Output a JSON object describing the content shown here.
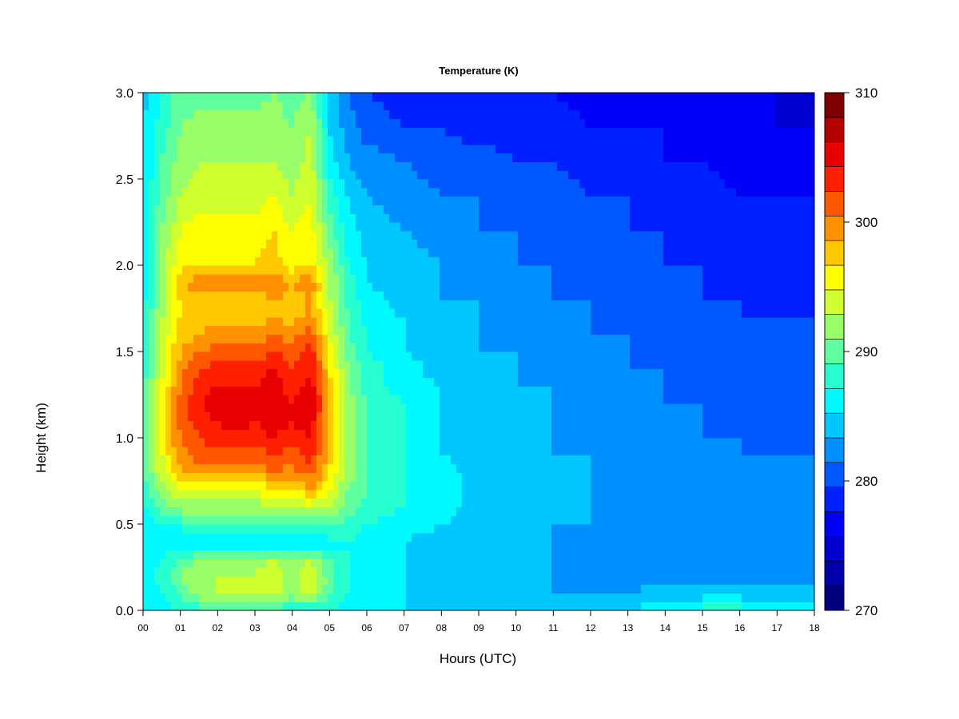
{
  "chart_data": {
    "type": "heatmap",
    "title": "Temperature (K)",
    "xlabel": "Hours (UTC)",
    "ylabel": "Height (km)",
    "x_range": [
      0,
      18
    ],
    "y_range": [
      0,
      3.0
    ],
    "x_ticks": [
      "00",
      "01",
      "02",
      "03",
      "04",
      "05",
      "06",
      "07",
      "08",
      "09",
      "10",
      "11",
      "12",
      "13",
      "14",
      "15",
      "16",
      "17",
      "18"
    ],
    "y_ticks": [
      "0.0",
      "0.5",
      "1.0",
      "1.5",
      "2.0",
      "2.5",
      "3.0"
    ],
    "colorbar": {
      "min": 270,
      "max": 310,
      "step": 2,
      "labels": [
        "270",
        "280",
        "290",
        "300",
        "310"
      ],
      "colors": [
        "#00007f",
        "#0000a8",
        "#0000d0",
        "#0000f8",
        "#0020ff",
        "#0058ff",
        "#0090ff",
        "#00c8ff",
        "#00f8ff",
        "#28ffd0",
        "#60ffa0",
        "#98ff68",
        "#d0ff30",
        "#ffff00",
        "#ffc800",
        "#ff9000",
        "#ff5800",
        "#ff2000",
        "#e80000",
        "#b40000",
        "#7f0000"
      ]
    },
    "temperature_field": {
      "x_hours": [
        0,
        0.5,
        1,
        1.5,
        2,
        2.5,
        3,
        3.5,
        4,
        4.5,
        5,
        5.5,
        6,
        7,
        8,
        9,
        10,
        11,
        12,
        13,
        14,
        15,
        16,
        17,
        18
      ],
      "y_km": [
        0.0,
        0.1,
        0.2,
        0.3,
        0.4,
        0.5,
        0.6,
        0.7,
        0.8,
        0.9,
        1.0,
        1.1,
        1.2,
        1.3,
        1.4,
        1.5,
        1.6,
        1.7,
        1.8,
        1.9,
        2.0,
        2.2,
        2.4,
        2.6,
        2.8,
        3.0
      ],
      "values_K": [
        [
          287,
          287,
          288,
          289,
          289,
          289,
          289,
          289,
          288,
          288,
          288,
          287,
          286,
          286,
          285,
          285,
          285,
          285,
          285,
          286,
          288,
          289,
          289,
          288,
          288
        ],
        [
          287,
          288,
          290,
          293,
          294,
          294,
          294,
          295,
          293,
          295,
          290,
          288,
          287,
          286,
          285,
          285,
          284,
          284,
          284,
          284,
          285,
          285,
          285,
          285,
          285
        ],
        [
          287,
          289,
          292,
          294,
          294,
          294,
          294,
          296,
          293,
          296,
          291,
          288,
          287,
          286,
          285,
          285,
          284,
          284,
          283,
          283,
          283,
          283,
          283,
          283,
          283
        ],
        [
          287,
          288,
          290,
          292,
          293,
          293,
          293,
          294,
          292,
          294,
          290,
          288,
          287,
          286,
          285,
          285,
          284,
          284,
          283,
          283,
          283,
          283,
          283,
          282,
          283
        ],
        [
          286,
          287,
          285,
          286,
          286,
          286,
          285,
          286,
          285,
          286,
          287,
          288,
          287,
          286,
          285,
          285,
          284,
          284,
          283,
          283,
          283,
          283,
          283,
          282,
          283
        ],
        [
          286,
          288,
          289,
          289,
          289,
          289,
          289,
          289,
          290,
          290,
          291,
          289,
          288,
          287,
          286,
          285,
          285,
          284,
          284,
          283,
          283,
          283,
          283,
          283,
          283
        ],
        [
          287,
          291,
          293,
          293,
          293,
          293,
          293,
          294,
          294,
          295,
          294,
          291,
          289,
          288,
          287,
          285,
          285,
          284,
          284,
          283,
          283,
          283,
          283,
          283,
          283
        ],
        [
          289,
          293,
          296,
          297,
          296,
          296,
          296,
          298,
          298,
          300,
          296,
          292,
          290,
          288,
          287,
          285,
          285,
          284,
          284,
          283,
          283,
          283,
          282,
          283,
          283
        ],
        [
          290,
          295,
          299,
          301,
          300,
          300,
          300,
          302,
          301,
          303,
          298,
          293,
          290,
          288,
          287,
          285,
          285,
          284,
          284,
          283,
          283,
          283,
          282,
          282,
          282
        ],
        [
          291,
          296,
          301,
          303,
          303,
          303,
          303,
          304,
          303,
          305,
          299,
          293,
          290,
          288,
          286,
          285,
          285,
          284,
          284,
          283,
          283,
          282,
          282,
          282,
          282
        ],
        [
          291,
          297,
          302,
          304,
          305,
          305,
          305,
          306,
          305,
          306,
          300,
          293,
          290,
          288,
          286,
          285,
          284,
          284,
          283,
          283,
          282,
          282,
          282,
          281,
          281
        ],
        [
          290,
          297,
          303,
          305,
          306,
          307,
          306,
          307,
          306,
          307,
          300,
          293,
          290,
          288,
          286,
          285,
          284,
          284,
          283,
          283,
          282,
          282,
          281,
          281,
          281
        ],
        [
          290,
          296,
          303,
          306,
          307,
          308,
          307,
          308,
          306,
          308,
          300,
          293,
          290,
          288,
          286,
          285,
          284,
          284,
          283,
          283,
          282,
          282,
          281,
          281,
          281
        ],
        [
          289,
          296,
          302,
          305,
          306,
          306,
          306,
          307,
          305,
          307,
          299,
          292,
          289,
          287,
          286,
          285,
          284,
          284,
          283,
          282,
          282,
          281,
          281,
          281,
          281
        ],
        [
          289,
          295,
          301,
          304,
          305,
          305,
          305,
          306,
          304,
          306,
          298,
          292,
          289,
          287,
          285,
          285,
          284,
          283,
          283,
          282,
          282,
          281,
          281,
          280,
          280
        ],
        [
          288,
          295,
          300,
          302,
          303,
          303,
          303,
          304,
          303,
          305,
          297,
          291,
          288,
          286,
          285,
          284,
          284,
          283,
          283,
          282,
          281,
          281,
          280,
          280,
          280
        ],
        [
          288,
          294,
          299,
          300,
          301,
          301,
          301,
          302,
          301,
          303,
          296,
          290,
          288,
          286,
          285,
          284,
          283,
          283,
          282,
          282,
          281,
          281,
          280,
          280,
          280
        ],
        [
          288,
          294,
          298,
          299,
          299,
          299,
          299,
          300,
          299,
          301,
          295,
          290,
          287,
          286,
          285,
          284,
          283,
          283,
          282,
          281,
          281,
          280,
          280,
          280,
          280
        ],
        [
          287,
          293,
          298,
          299,
          299,
          299,
          299,
          300,
          299,
          300,
          294,
          289,
          287,
          285,
          284,
          284,
          283,
          282,
          282,
          281,
          281,
          280,
          280,
          279,
          279
        ],
        [
          287,
          293,
          300,
          301,
          301,
          301,
          301,
          302,
          300,
          302,
          294,
          289,
          286,
          285,
          284,
          283,
          283,
          282,
          281,
          281,
          280,
          280,
          279,
          279,
          279
        ],
        [
          287,
          293,
          297,
          298,
          298,
          298,
          298,
          299,
          297,
          298,
          293,
          288,
          286,
          285,
          284,
          283,
          282,
          282,
          281,
          281,
          280,
          280,
          279,
          279,
          279
        ],
        [
          287,
          292,
          296,
          297,
          297,
          297,
          297,
          298,
          296,
          297,
          291,
          287,
          285,
          284,
          283,
          282,
          282,
          281,
          281,
          280,
          280,
          279,
          279,
          279,
          278
        ],
        [
          286,
          291,
          294,
          295,
          295,
          295,
          295,
          296,
          294,
          296,
          289,
          286,
          284,
          283,
          282,
          282,
          281,
          281,
          280,
          280,
          279,
          279,
          278,
          278,
          278
        ],
        [
          286,
          290,
          293,
          294,
          294,
          294,
          294,
          294,
          293,
          295,
          287,
          284,
          283,
          282,
          281,
          281,
          280,
          280,
          279,
          279,
          278,
          278,
          277,
          277,
          277
        ],
        [
          286,
          289,
          292,
          293,
          293,
          293,
          293,
          293,
          292,
          294,
          286,
          283,
          281,
          280,
          280,
          279,
          279,
          279,
          278,
          278,
          278,
          277,
          277,
          276,
          276
        ],
        [
          285,
          288,
          291,
          291,
          291,
          291,
          291,
          292,
          291,
          292,
          285,
          282,
          280,
          279,
          279,
          278,
          278,
          278,
          277,
          277,
          277,
          276,
          276,
          276,
          275
        ]
      ]
    }
  }
}
